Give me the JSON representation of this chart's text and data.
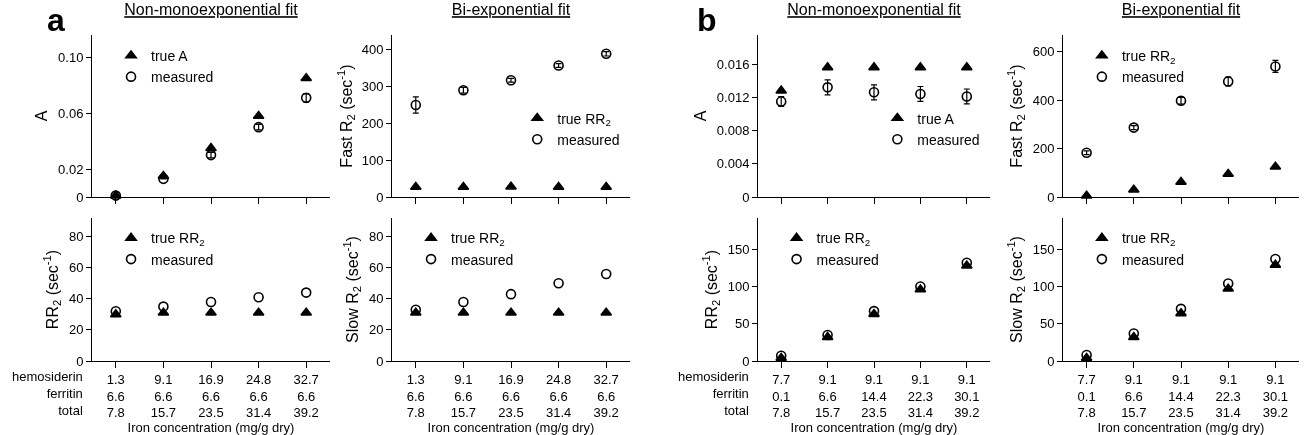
{
  "chart_data": [
    {
      "type": "scatter",
      "title": "Non-monoexponential fit",
      "ylabel": "A",
      "annotations": [
        "a"
      ],
      "categories": [
        null,
        null,
        null,
        null,
        null
      ],
      "ylim": [
        0,
        0.116
      ],
      "yticks": [
        0,
        0.02,
        0.06,
        {
          "value": 0.1,
          "label": "0.10"
        }
      ],
      "tick_labels": "y",
      "legend": "top left",
      "grid": false,
      "series": [
        {
          "name": "true A",
          "color": "#000000",
          "marker": "triangle",
          "values": [
            0.001,
            0.015,
            0.035,
            0.058,
            0.085
          ]
        },
        {
          "name": "measured",
          "color": "#000000",
          "marker": "circle",
          "values": [
            0.001,
            0.013,
            0.03,
            0.05,
            0.071
          ],
          "errors": [
            null,
            null,
            0.002,
            0.002,
            0.003
          ]
        }
      ]
    },
    {
      "type": "scatter",
      "title": "Bi-exponential fit",
      "ylabel": "Fast R$_{2}$ (sec$^{-1}$)",
      "categories": [
        null,
        null,
        null,
        null,
        null
      ],
      "ylim": [
        0,
        440
      ],
      "yticks": [
        0,
        100,
        200,
        300,
        400
      ],
      "tick_labels": "y",
      "legend": "right",
      "grid": false,
      "series": [
        {
          "name": "true RR$_{2}$",
          "color": "#000000",
          "marker": "triangle",
          "values": [
            27,
            27,
            28,
            27,
            27
          ]
        },
        {
          "name": "measured",
          "color": "#000000",
          "marker": "circle",
          "values": [
            250,
            290,
            317,
            357,
            389
          ],
          "errors": [
            22,
            8,
            5,
            5,
            6
          ]
        }
      ]
    },
    {
      "type": "scatter",
      "title": "Non-monoexponential fit",
      "ylabel": "A",
      "annotations": [
        "b"
      ],
      "categories": [
        null,
        null,
        null,
        null,
        null
      ],
      "ylim": [
        0,
        0.0195
      ],
      "yticks": [
        0,
        0.004,
        0.008,
        0.012,
        0.016
      ],
      "tick_labels": "y",
      "legend": "right",
      "grid": false,
      "series": [
        {
          "name": "true A",
          "color": "#000000",
          "marker": "triangle",
          "values": [
            0.0128,
            0.0156,
            0.0156,
            0.0156,
            0.0156
          ]
        },
        {
          "name": "measured",
          "color": "#000000",
          "values": [
            0.0115,
            0.0132,
            0.0126,
            0.0124,
            0.0121
          ],
          "errors": [
            0.0006,
            0.0009,
            0.0009,
            0.0009,
            0.0009
          ]
        }
      ]
    },
    {
      "type": "scatter",
      "title": "Bi-exponential fit",
      "ylabel": "Fast R$_{2}$ (sec$^{-1}$)",
      "categories": [
        null,
        null,
        null,
        null,
        null
      ],
      "ylim": [
        0,
        670
      ],
      "yticks": [
        0,
        200,
        400,
        600
      ],
      "tick_labels": "y",
      "legend": "top left",
      "grid": false,
      "series": [
        {
          "name": "true RR$_{2}$",
          "color": "#000000",
          "marker": "triangle",
          "values": [
            5,
            30,
            62,
            95,
            125
          ]
        },
        {
          "name": "measured",
          "color": "#000000",
          "marker": "circle",
          "values": [
            183,
            287,
            398,
            478,
            540
          ],
          "errors": [
            8,
            8,
            14,
            18,
            25
          ]
        }
      ]
    },
    {
      "type": "scatter",
      "ylabel": "RR$_{2}$ (sec$^{-1}$)",
      "xlabel": "Iron concentration (mg/g dry)",
      "annotations": [
        "hemosiderin\nferritin\ntotal"
      ],
      "categories": [
        "1.3\n6.6\n7.8",
        "9.1\n6.6\n15.7",
        "16.9\n6.6\n23.5",
        "24.8\n6.6\n31.4",
        "32.7\n6.6\n39.2"
      ],
      "ylim": [
        0,
        92
      ],
      "yticks": [
        0,
        20,
        40,
        60,
        80
      ],
      "legend": "top left",
      "grid": false,
      "series": [
        {
          "name": "true RR$_{2}$",
          "color": "#000000",
          "marker": "triangle",
          "values": [
            30,
            31,
            31,
            31,
            31
          ]
        },
        {
          "name": "measured",
          "color": "#000000",
          "marker": "circle",
          "values": [
            32,
            35,
            38,
            41,
            44
          ]
        }
      ]
    },
    {
      "type": "scatter",
      "ylabel": "Slow R$_{2}$ (sec$^{-1}$)",
      "xlabel": "Iron concentration (mg/g dry)",
      "categories": [
        "1.3\n6.6\n7.8",
        "9.1\n6.6\n15.7",
        "16.9\n6.6\n23.5",
        "24.8\n6.6\n31.4",
        "32.7\n6.6\n39.2"
      ],
      "ylim": [
        0,
        92
      ],
      "yticks": [
        0,
        20,
        40,
        60,
        80
      ],
      "legend": "top left",
      "grid": false,
      "series": [
        {
          "name": "true RR$_{2}$",
          "color": "#000000",
          "marker": "triangle",
          "values": [
            31,
            31,
            31,
            31,
            31
          ]
        },
        {
          "name": "measured",
          "color": "#000000",
          "marker": "circle",
          "values": [
            33,
            38,
            43,
            50,
            56
          ]
        }
      ]
    },
    {
      "type": "scatter",
      "ylabel": "RR$_{2}$ (sec$^{-1}$)",
      "xlabel": "Iron concentration (mg/g dry)",
      "annotations": [
        "hemosiderin\nferritin\ntotal"
      ],
      "categories": [
        "7.7\n0.1\n7.8",
        "9.1\n6.6\n15.7",
        "9.1\n14.4\n23.5",
        "9.1\n22.3\n31.4",
        "9.1\n30.1\n39.2"
      ],
      "ylim": [
        0,
        192
      ],
      "yticks": [
        0,
        50,
        100,
        150
      ],
      "legend": "top left",
      "grid": false,
      "series": [
        {
          "name": "true RR$_{2}$",
          "color": "#000000",
          "marker": "triangle",
          "values": [
            4,
            32,
            63,
            96,
            128
          ]
        },
        {
          "name": "measured",
          "color": "#000000",
          "marker": "circle",
          "values": [
            7,
            35,
            67,
            100,
            132
          ]
        }
      ]
    },
    {
      "type": "scatter",
      "ylabel": "Slow R$_{2}$ (sec$^{-1}$)",
      "xlabel": "Iron concentration (mg/g dry)",
      "categories": [
        "7.7\n0.1\n7.8",
        "9.1\n6.6\n15.7",
        "9.1\n14.4\n23.5",
        "9.1\n22.3\n31.4",
        "9.1\n30.1\n39.2"
      ],
      "ylim": [
        0,
        192
      ],
      "yticks": [
        0,
        50,
        100,
        150
      ],
      "legend": "top left",
      "grid": false,
      "series": [
        {
          "name": "true RR$_{2}$",
          "color": "#000000",
          "marker": "triangle",
          "values": [
            4,
            32,
            64,
            97,
            129
          ]
        },
        {
          "name": "measured",
          "color": "#000000",
          "marker": "circle",
          "values": [
            8,
            37,
            70,
            104,
            137
          ]
        }
      ]
    }
  ]
}
